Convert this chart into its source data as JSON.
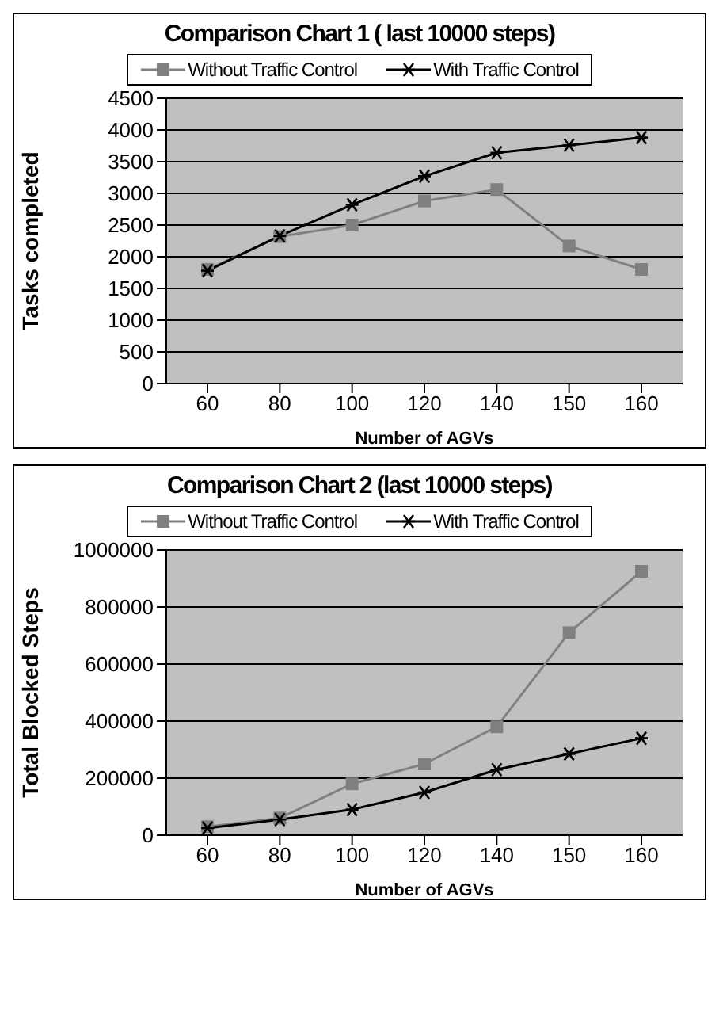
{
  "chart_data": [
    {
      "type": "line",
      "title": "Comparison Chart 1 ( last 10000 steps)",
      "xlabel": "Number of AGVs",
      "ylabel": "Tasks completed",
      "categories": [
        "60",
        "80",
        "100",
        "120",
        "140",
        "150",
        "160"
      ],
      "series": [
        {
          "name": "Without Traffic Control",
          "color": "#808080",
          "marker": "square",
          "values": [
            1800,
            2320,
            2500,
            2880,
            3060,
            2170,
            1800
          ]
        },
        {
          "name": "With Traffic Control",
          "color": "#000000",
          "marker": "cross",
          "values": [
            1780,
            2330,
            2820,
            3270,
            3640,
            3760,
            3880
          ]
        }
      ],
      "ylim": [
        0,
        4500
      ],
      "yticks": [
        0,
        500,
        1000,
        1500,
        2000,
        2500,
        3000,
        3500,
        4000,
        4500
      ],
      "grid": "y",
      "legend": "top"
    },
    {
      "type": "line",
      "title": "Comparison Chart 2 (last 10000 steps)",
      "xlabel": "Number of AGVs",
      "ylabel": "Total Blocked Steps",
      "categories": [
        "60",
        "80",
        "100",
        "120",
        "140",
        "150",
        "160"
      ],
      "series": [
        {
          "name": "Without Traffic Control",
          "color": "#808080",
          "marker": "square",
          "values": [
            30000,
            60000,
            180000,
            250000,
            380000,
            710000,
            925000
          ]
        },
        {
          "name": "With Traffic Control",
          "color": "#000000",
          "marker": "cross",
          "values": [
            25000,
            55000,
            90000,
            150000,
            230000,
            285000,
            340000
          ]
        }
      ],
      "ylim": [
        0,
        1000000
      ],
      "yticks": [
        0,
        200000,
        400000,
        600000,
        800000,
        1000000
      ],
      "grid": "y",
      "legend": "top"
    }
  ]
}
